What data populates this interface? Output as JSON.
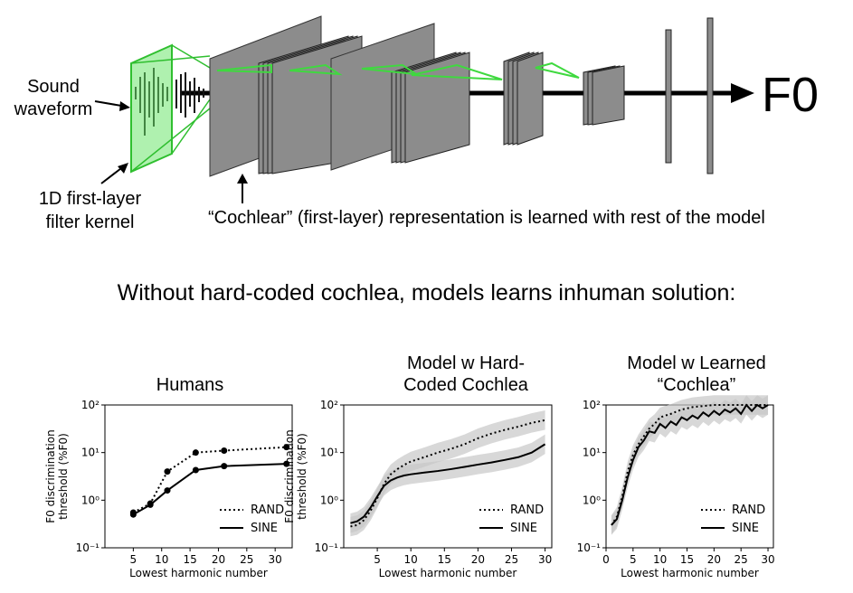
{
  "diagram": {
    "sound_waveform_label": [
      "Sound",
      "waveform"
    ],
    "filter_kernel_label": [
      "1D first-layer",
      "filter kernel"
    ],
    "cochlear_caption": "“Cochlear” (first-layer) representation is learned with rest of the model",
    "output_label": "F0",
    "colors": {
      "kernel_green": "#6ee66e",
      "kernel_border": "#2fbf2f",
      "layer_gray": "#8c8c8c"
    }
  },
  "headline": "Without hard-coded cochlea, models learns inhuman solution:",
  "chart_data": [
    {
      "type": "line",
      "title": "Humans",
      "xlabel": "Lowest harmonic number",
      "ylabel": "F0 discrimination threshold (%F0)",
      "ylabel_lines": [
        "F0 discrimination",
        "threshold (%F0)"
      ],
      "xlim": [
        0,
        33
      ],
      "ylim": [
        0.1,
        100
      ],
      "yscale": "log",
      "xticks": [
        "5",
        "10",
        "15",
        "20",
        "25",
        "30"
      ],
      "yticks": [
        "10⁻¹",
        "10⁰",
        "10¹",
        "10²"
      ],
      "legend": "bottom-right",
      "series": [
        {
          "name": "RAND",
          "style": "dotted",
          "x": [
            5,
            8,
            11,
            16,
            21,
            32
          ],
          "y": [
            0.55,
            0.85,
            4.0,
            10.0,
            11.0,
            13.0
          ]
        },
        {
          "name": "SINE",
          "style": "solid",
          "x": [
            5,
            8,
            11,
            16,
            21,
            32
          ],
          "y": [
            0.5,
            0.8,
            1.6,
            4.3,
            5.2,
            5.8
          ]
        }
      ]
    },
    {
      "type": "line",
      "title": "Model w Hard-Coded Cochlea",
      "title_lines": [
        "Model w Hard-",
        "Coded Cochlea"
      ],
      "xlabel": "Lowest harmonic number",
      "ylabel": "F0 discrimination threshold (%F0)",
      "ylabel_lines": [
        "F0 discrimination",
        "threshold (%F0)"
      ],
      "xlim": [
        0,
        31
      ],
      "ylim": [
        0.1,
        100
      ],
      "yscale": "log",
      "xticks": [
        "5",
        "10",
        "15",
        "20",
        "25",
        "30"
      ],
      "yticks": [
        "10⁻¹",
        "10⁰",
        "10¹",
        "10²"
      ],
      "legend": "bottom-right",
      "series": [
        {
          "name": "RAND",
          "style": "dotted",
          "x": [
            1,
            2,
            3,
            4,
            5,
            6,
            7,
            8,
            9,
            10,
            12,
            14,
            16,
            18,
            20,
            22,
            24,
            26,
            28,
            30
          ],
          "y": [
            0.28,
            0.3,
            0.38,
            0.6,
            1.1,
            2.2,
            3.5,
            4.5,
            5.5,
            6.5,
            8,
            10,
            12,
            15,
            20,
            25,
            30,
            35,
            42,
            48
          ]
        },
        {
          "name": "SINE",
          "style": "solid",
          "x": [
            1,
            2,
            3,
            4,
            5,
            6,
            7,
            8,
            9,
            10,
            12,
            14,
            16,
            18,
            20,
            22,
            24,
            26,
            28,
            30
          ],
          "y": [
            0.33,
            0.36,
            0.45,
            0.7,
            1.2,
            2.0,
            2.6,
            3.0,
            3.3,
            3.5,
            3.8,
            4.1,
            4.5,
            5.0,
            5.6,
            6.2,
            7.0,
            8.0,
            10,
            15
          ]
        }
      ]
    },
    {
      "type": "line",
      "title": "Model w Learned “Cochlea”",
      "title_lines": [
        "Model w Learned",
        "“Cochlea”"
      ],
      "xlabel": "Lowest harmonic number",
      "xlim": [
        0,
        31
      ],
      "ylim": [
        0.1,
        100
      ],
      "yscale": "log",
      "xticks": [
        "0",
        "5",
        "10",
        "15",
        "20",
        "25",
        "30"
      ],
      "yticks": [
        "10⁻¹",
        "10⁰",
        "10¹",
        "10²"
      ],
      "legend": "bottom-right",
      "series": [
        {
          "name": "RAND",
          "style": "dotted",
          "x": [
            1,
            2,
            3,
            4,
            5,
            6,
            7,
            8,
            9,
            10,
            11,
            12,
            14,
            16,
            18,
            20,
            22,
            24,
            26,
            28,
            30
          ],
          "y": [
            0.3,
            0.45,
            1.2,
            4,
            9,
            15,
            22,
            32,
            40,
            55,
            60,
            65,
            80,
            90,
            95,
            100,
            100,
            100,
            100,
            100,
            100
          ]
        },
        {
          "name": "SINE",
          "style": "solid",
          "x": [
            1,
            2,
            3,
            4,
            5,
            6,
            7,
            8,
            9,
            10,
            11,
            12,
            13,
            14,
            15,
            16,
            17,
            18,
            19,
            20,
            21,
            22,
            23,
            24,
            25,
            26,
            27,
            28,
            29,
            30
          ],
          "y": [
            0.3,
            0.4,
            1.0,
            3.0,
            7,
            13,
            18,
            28,
            26,
            40,
            33,
            45,
            38,
            55,
            48,
            60,
            52,
            70,
            58,
            75,
            62,
            80,
            70,
            85,
            65,
            100,
            75,
            100,
            85,
            100
          ]
        }
      ]
    }
  ]
}
